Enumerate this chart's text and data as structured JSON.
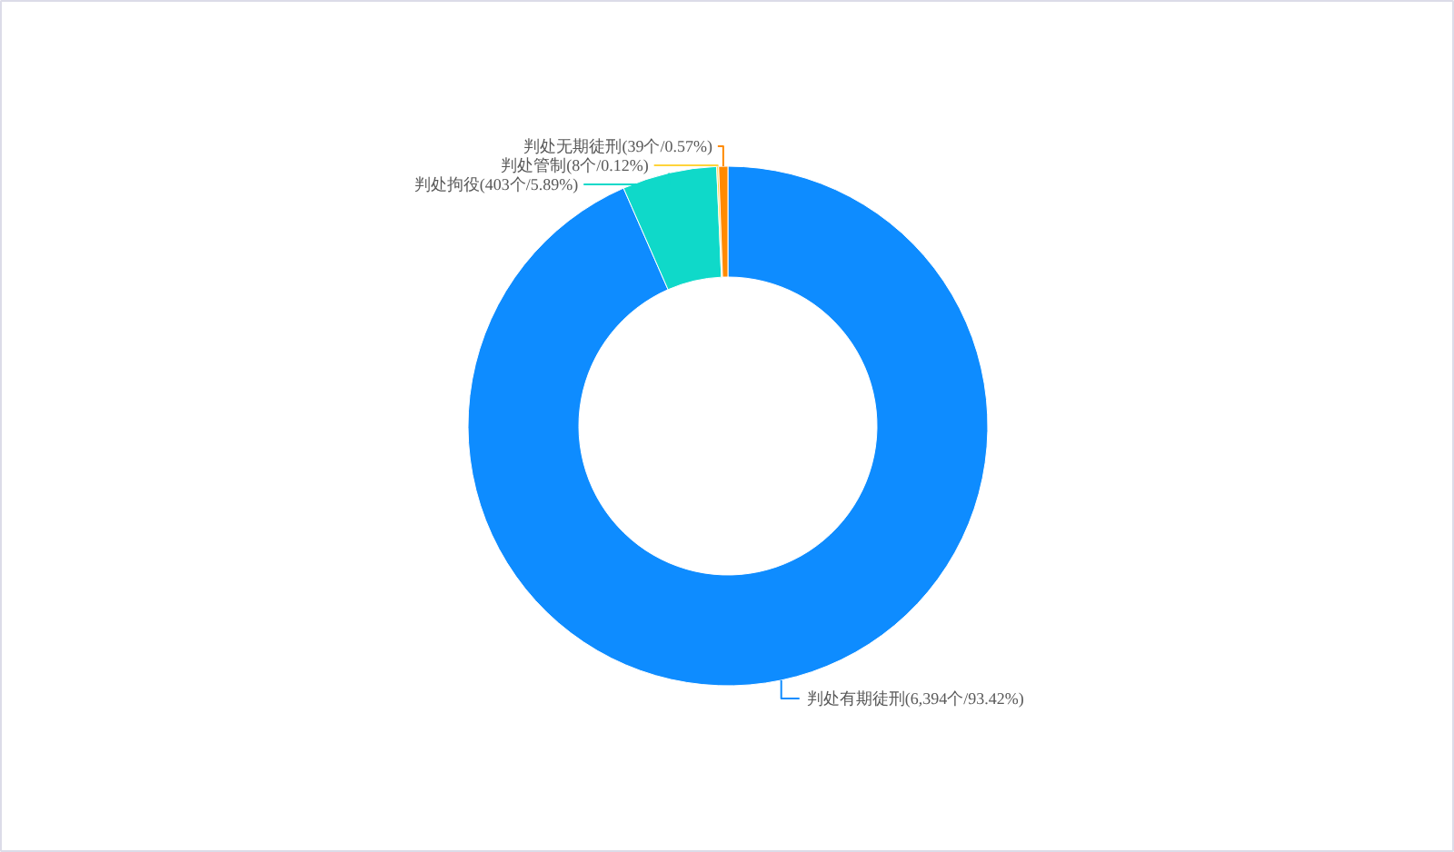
{
  "chart_data": {
    "type": "donut",
    "categories": [
      "判处有期徒刑(6,394个/93.42%)",
      "判处拘役(403个/5.89%)",
      "判处管制(8个/0.12%)",
      "判处无期徒刑(39个/0.57%)"
    ],
    "values": [
      93.42,
      5.89,
      0.12,
      0.57
    ],
    "colors": [
      "#0e8cff",
      "#0fd9c9",
      "#ffd43b",
      "#ff8a00"
    ]
  }
}
